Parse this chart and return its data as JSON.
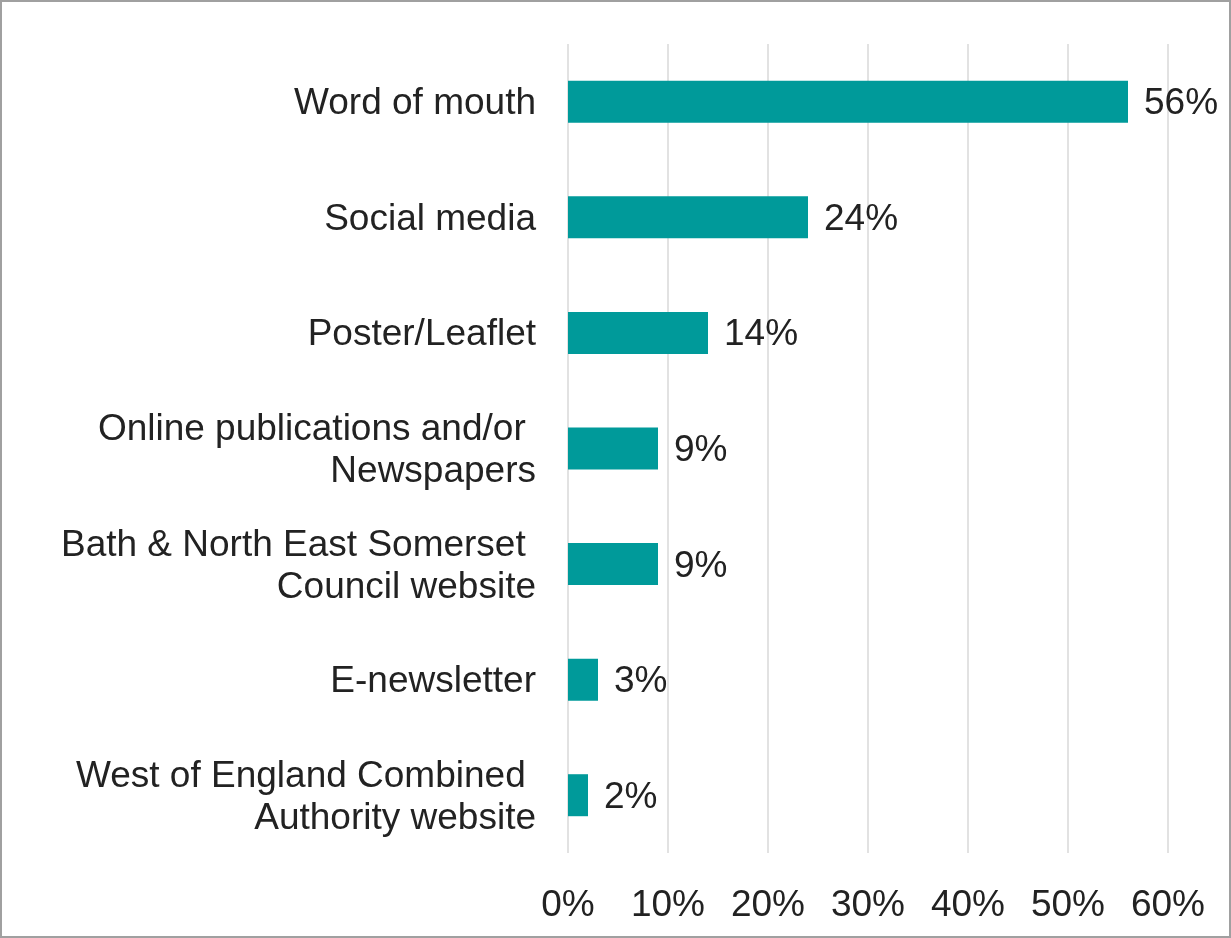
{
  "chart_data": {
    "type": "bar",
    "orientation": "horizontal",
    "categories": [
      "Word of mouth",
      "Social media",
      "Poster/Leaflet",
      "Online publications and/or Newspapers",
      "Bath & North East Somerset Council website",
      "E-newsletter",
      "West of England Combined Authority website"
    ],
    "values": [
      56,
      24,
      14,
      9,
      9,
      3,
      2
    ],
    "value_labels": [
      "56%",
      "24%",
      "14%",
      "9%",
      "9%",
      "3%",
      "2%"
    ],
    "color": "#009a9a",
    "xlim": [
      0,
      60
    ],
    "xticks": [
      {
        "value": 0,
        "label": "0%"
      },
      {
        "value": 10,
        "label": "10%"
      },
      {
        "value": 20,
        "label": "20%"
      },
      {
        "value": 30,
        "label": "30%"
      },
      {
        "value": 40,
        "label": "40%"
      },
      {
        "value": 50,
        "label": "50%"
      },
      {
        "value": 60,
        "label": "60%"
      }
    ],
    "grid": "x"
  }
}
